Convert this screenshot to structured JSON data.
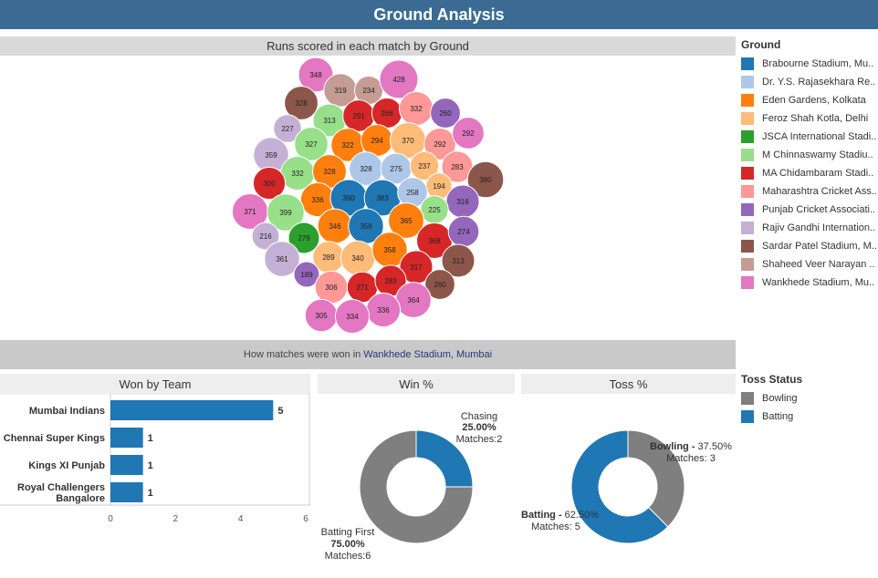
{
  "title": "Ground Analysis",
  "bubble_section_title": "Runs scored in each match by Ground",
  "subtitle": {
    "prefix": "How matches were won in",
    "ground": "Wankhede Stadium, Mumbai"
  },
  "ground_legend": {
    "title": "Ground",
    "items": [
      {
        "label": "Brabourne Stadium, Mu..",
        "color": "#1f77b4"
      },
      {
        "label": "Dr. Y.S. Rajasekhara Re..",
        "color": "#aec7e8"
      },
      {
        "label": "Eden Gardens, Kolkata",
        "color": "#ff7f0e"
      },
      {
        "label": "Feroz Shah Kotla, Delhi",
        "color": "#ffbb78"
      },
      {
        "label": "JSCA International Stadi..",
        "color": "#2ca02c"
      },
      {
        "label": "M Chinnaswamy Stadiu..",
        "color": "#98df8a"
      },
      {
        "label": "MA Chidambaram Stadi..",
        "color": "#d62728"
      },
      {
        "label": "Maharashtra Cricket Ass..",
        "color": "#ff9896"
      },
      {
        "label": "Punjab Cricket Associati..",
        "color": "#9467bd"
      },
      {
        "label": "Rajiv Gandhi Internation..",
        "color": "#c5b0d5"
      },
      {
        "label": "Sardar Patel Stadium, M..",
        "color": "#8c564b"
      },
      {
        "label": "Shaheed Veer Narayan ..",
        "color": "#c49c94"
      },
      {
        "label": "Wankhede Stadium, Mu..",
        "color": "#e377c2"
      }
    ]
  },
  "toss_legend": {
    "title": "Toss Status",
    "items": [
      {
        "label": "Bowling",
        "color": "#7f7f7f"
      },
      {
        "label": "Batting",
        "color": "#1f77b4"
      }
    ]
  },
  "chart_data": [
    {
      "type": "scatter",
      "title": "Runs scored in each match by Ground",
      "bubbles": [
        {
          "g": 12,
          "v": 348
        },
        {
          "g": 11,
          "v": 319
        },
        {
          "g": 11,
          "v": 234
        },
        {
          "g": 12,
          "v": 428
        },
        {
          "g": 10,
          "v": 328
        },
        {
          "g": 5,
          "v": 313
        },
        {
          "g": 6,
          "v": 291
        },
        {
          "g": 6,
          "v": 266
        },
        {
          "g": 7,
          "v": 332
        },
        {
          "g": 8,
          "v": 260
        },
        {
          "g": 9,
          "v": 227
        },
        {
          "g": 5,
          "v": 327
        },
        {
          "g": 2,
          "v": 322
        },
        {
          "g": 2,
          "v": 294
        },
        {
          "g": 3,
          "v": 370
        },
        {
          "g": 7,
          "v": 292
        },
        {
          "g": 12,
          "v": 292
        },
        {
          "g": 9,
          "v": 359
        },
        {
          "g": 5,
          "v": 332
        },
        {
          "g": 2,
          "v": 328
        },
        {
          "g": 1,
          "v": 328
        },
        {
          "g": 1,
          "v": 275
        },
        {
          "g": 3,
          "v": 237
        },
        {
          "g": 7,
          "v": 283
        },
        {
          "g": 10,
          "v": 380
        },
        {
          "g": 6,
          "v": 300
        },
        {
          "g": 3,
          "v": 194
        },
        {
          "g": 2,
          "v": 336
        },
        {
          "g": 0,
          "v": 390
        },
        {
          "g": 0,
          "v": 383
        },
        {
          "g": 1,
          "v": 258
        },
        {
          "g": 8,
          "v": 316
        },
        {
          "g": 12,
          "v": 371
        },
        {
          "g": 5,
          "v": 399
        },
        {
          "g": 5,
          "v": 225
        },
        {
          "g": 2,
          "v": 346
        },
        {
          "g": 0,
          "v": 358
        },
        {
          "g": 2,
          "v": 365
        },
        {
          "g": 9,
          "v": 216
        },
        {
          "g": 4,
          "v": 279
        },
        {
          "g": 6,
          "v": 368
        },
        {
          "g": 8,
          "v": 274
        },
        {
          "g": 9,
          "v": 361
        },
        {
          "g": 3,
          "v": 289
        },
        {
          "g": 3,
          "v": 340
        },
        {
          "g": 2,
          "v": 358
        },
        {
          "g": 10,
          "v": 313
        },
        {
          "g": 8,
          "v": 189
        },
        {
          "g": 6,
          "v": 317
        },
        {
          "g": 7,
          "v": 306
        },
        {
          "g": 6,
          "v": 271
        },
        {
          "g": 6,
          "v": 283
        },
        {
          "g": 10,
          "v": 260
        },
        {
          "g": 12,
          "v": 364
        },
        {
          "g": 12,
          "v": 336
        },
        {
          "g": 12,
          "v": 305
        },
        {
          "g": 12,
          "v": 334
        }
      ]
    },
    {
      "type": "bar",
      "title": "Won by Team",
      "categories": [
        "Mumbai Indians",
        "Chennai Super Kings",
        "Kings XI Punjab",
        "Royal Challengers Bangalore"
      ],
      "values": [
        5,
        1,
        1,
        1
      ],
      "xlim": [
        0,
        6
      ],
      "xticks": [
        0,
        2,
        4,
        6
      ],
      "color": "#1f77b4"
    },
    {
      "type": "pie",
      "title": "Win %",
      "slices": [
        {
          "label": "Chasing",
          "pct": "25.00%",
          "matches": "Matches:2",
          "value": 25,
          "color": "#1f77b4"
        },
        {
          "label": "Batting First",
          "pct": "75.00%",
          "matches": "Matches:6",
          "value": 75,
          "color": "#7f7f7f"
        }
      ]
    },
    {
      "type": "pie",
      "title": "Toss %",
      "slices": [
        {
          "label": "Bowling -",
          "pct": "37.50%",
          "matches": "Matches: 3",
          "value": 37.5,
          "color": "#7f7f7f"
        },
        {
          "label": "Batting -",
          "pct": "62.50%",
          "matches": "Matches: 5",
          "value": 62.5,
          "color": "#1f77b4"
        }
      ]
    }
  ]
}
